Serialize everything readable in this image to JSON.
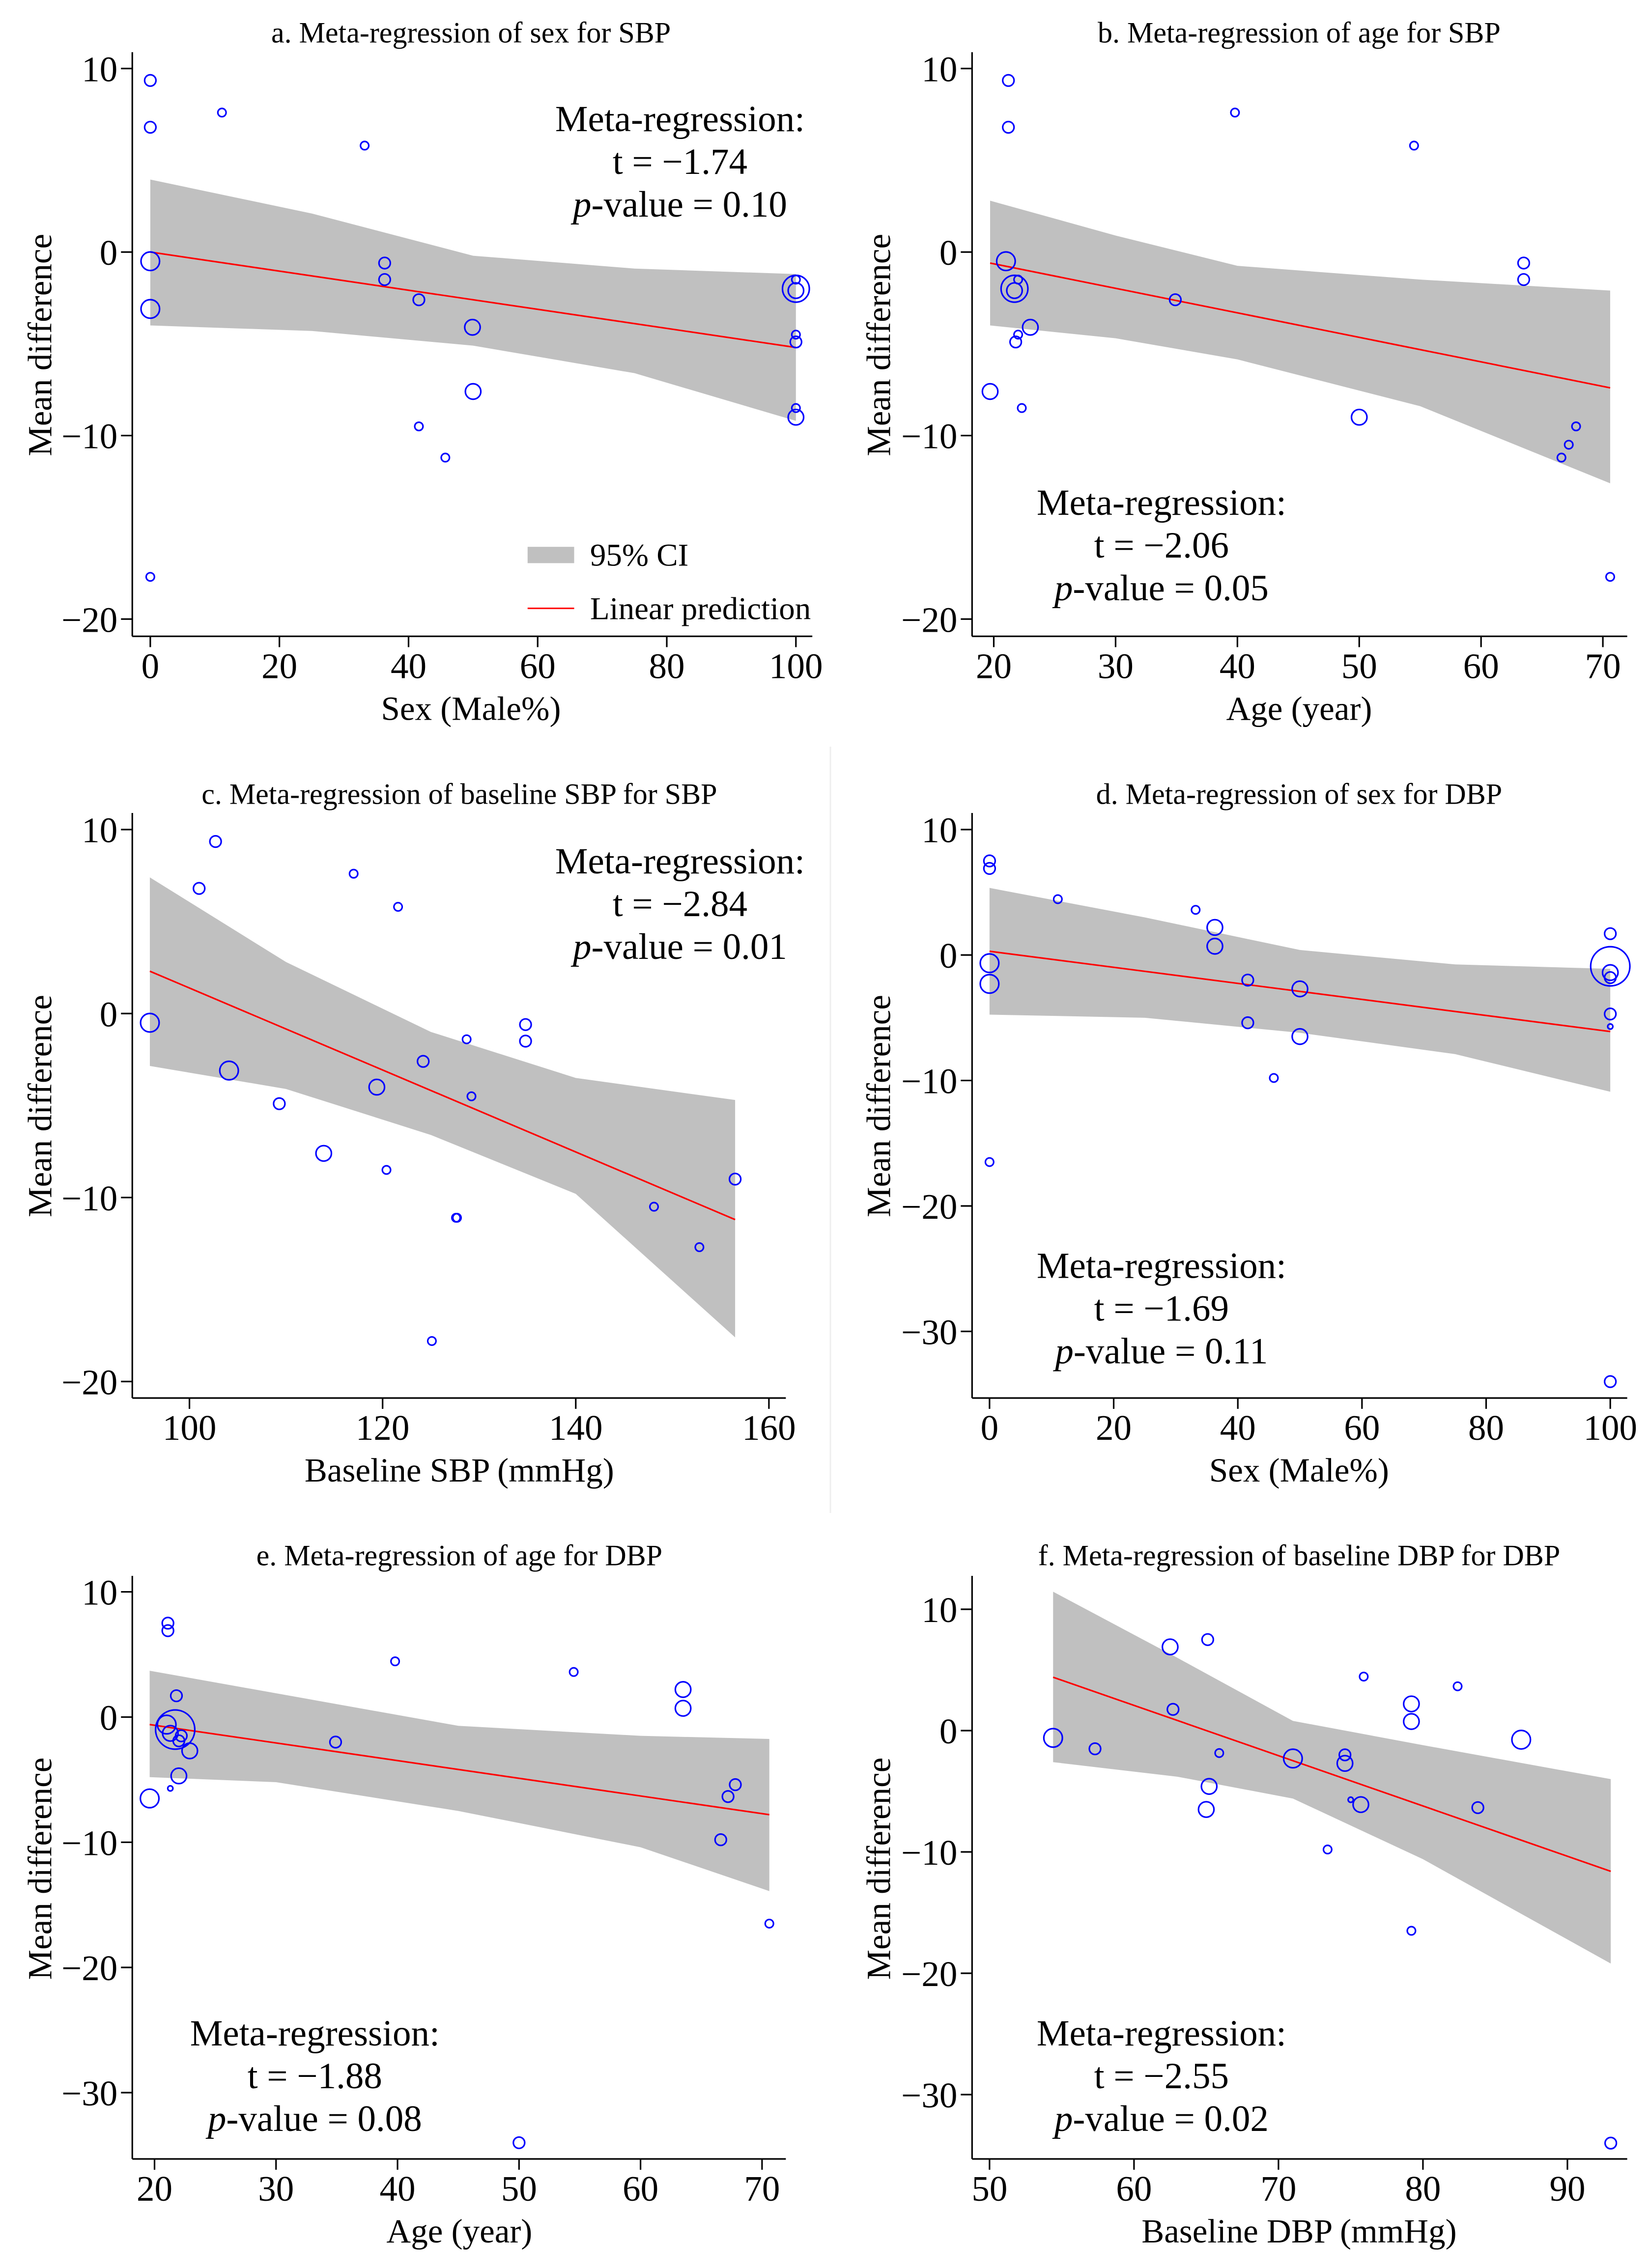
{
  "chart_data": [
    {
      "type": "scatter",
      "title": "a. Meta-regression of sex for SBP",
      "xlabel": "Sex (Male%)",
      "ylabel": "Mean difference",
      "xticks": [
        0,
        20,
        40,
        60,
        80,
        100
      ],
      "xtick_labels": [
        "0",
        "20",
        "40",
        "60",
        "80",
        "100"
      ],
      "yticks": [
        10,
        0,
        -10,
        -20
      ],
      "ytick_labels": [
        "10",
        "0",
        "−10",
        "−20"
      ],
      "fit_line": {
        "x": [
          0,
          100
        ],
        "y": [
          0.0,
          -5.2
        ]
      },
      "ci": {
        "x": [
          0,
          25,
          50,
          75,
          100
        ],
        "upper": [
          3.95,
          2.1,
          -0.2,
          -0.9,
          -1.2
        ],
        "lower": [
          -4.0,
          -4.3,
          -5.1,
          -6.6,
          -9.2
        ]
      },
      "points": [
        [
          0,
          9.35,
          3
        ],
        [
          0,
          6.8,
          3
        ],
        [
          11.1,
          7.6,
          2
        ],
        [
          33.2,
          5.8,
          2
        ],
        [
          0,
          -0.5,
          5
        ],
        [
          0,
          -3.1,
          5
        ],
        [
          36.3,
          -0.6,
          3
        ],
        [
          36.3,
          -1.5,
          3
        ],
        [
          41.6,
          -2.6,
          3
        ],
        [
          49.9,
          -4.1,
          4
        ],
        [
          50,
          -7.6,
          4
        ],
        [
          41.6,
          -9.5,
          2
        ],
        [
          45.7,
          -11.2,
          2
        ],
        [
          0,
          -17.7,
          2
        ],
        [
          100,
          -2.0,
          6
        ],
        [
          100,
          -2.1,
          4
        ],
        [
          100,
          -1.5,
          2
        ],
        [
          100,
          -4.5,
          2
        ],
        [
          100,
          -4.9,
          3
        ],
        [
          100,
          -8.5,
          2
        ],
        [
          100,
          -9.0,
          4
        ]
      ],
      "annotation": {
        "heading": "Meta-regression:",
        "t_line": "t = −1.74",
        "p_italic": "p",
        "p_rest": "-value = 0.10"
      },
      "legend": {
        "position": "bottom-right",
        "ci_label": "95% CI",
        "line_label": "Linear prediction"
      }
    },
    {
      "type": "scatter",
      "title": "b. Meta-regression of age for SBP",
      "xlabel": "Age (year)",
      "ylabel": "Mean difference",
      "xticks": [
        20,
        30,
        40,
        50,
        60,
        70
      ],
      "xtick_labels": [
        "20",
        "30",
        "40",
        "50",
        "60",
        "70"
      ],
      "yticks": [
        10,
        0,
        -10,
        -20
      ],
      "ytick_labels": [
        "10",
        "0",
        "−10",
        "−20"
      ],
      "fit_line": {
        "x": [
          19.7,
          70.6
        ],
        "y": [
          -0.6,
          -7.4
        ]
      },
      "ci": {
        "x": [
          19.7,
          30,
          40,
          55,
          70.6
        ],
        "upper": [
          2.8,
          0.9,
          -0.75,
          -1.5,
          -2.1
        ],
        "lower": [
          -4.0,
          -4.7,
          -5.85,
          -8.4,
          -12.6
        ]
      },
      "points": [
        [
          21.2,
          9.35,
          3
        ],
        [
          21.2,
          6.8,
          3
        ],
        [
          39.8,
          7.6,
          2
        ],
        [
          54.5,
          5.8,
          2
        ],
        [
          21.0,
          -0.5,
          5
        ],
        [
          21.7,
          -2.0,
          6
        ],
        [
          21.7,
          -2.1,
          4
        ],
        [
          22.0,
          -1.5,
          2
        ],
        [
          23.0,
          -4.1,
          4
        ],
        [
          22.0,
          -4.5,
          2
        ],
        [
          21.8,
          -4.9,
          3
        ],
        [
          19.7,
          -7.6,
          4
        ],
        [
          22.3,
          -8.5,
          2
        ],
        [
          34.9,
          -2.6,
          3
        ],
        [
          50.0,
          -9.0,
          4
        ],
        [
          63.5,
          -0.6,
          3
        ],
        [
          63.5,
          -1.5,
          3
        ],
        [
          67.8,
          -9.5,
          2
        ],
        [
          67.2,
          -10.5,
          2
        ],
        [
          66.6,
          -11.2,
          2
        ],
        [
          70.6,
          -17.7,
          2
        ]
      ],
      "annotation": {
        "heading": "Meta-regression:",
        "t_line": "t = −2.06",
        "p_italic": "p",
        "p_rest": "-value = 0.05"
      }
    },
    {
      "type": "scatter",
      "title": "c. Meta-regression of baseline SBP for SBP",
      "xlabel": "Baseline SBP (mmHg)",
      "ylabel": "Mean difference",
      "xticks": [
        100,
        120,
        140,
        160
      ],
      "xtick_labels": [
        "100",
        "120",
        "140",
        "160"
      ],
      "yticks": [
        10,
        0,
        -10,
        -20
      ],
      "ytick_labels": [
        "10",
        "0",
        "−10",
        "−20"
      ],
      "fit_line": {
        "x": [
          95.9,
          156.5
        ],
        "y": [
          2.3,
          -11.2
        ]
      },
      "ci": {
        "x": [
          95.9,
          110,
          125,
          140,
          156.5
        ],
        "upper": [
          7.4,
          2.8,
          -1.0,
          -3.5,
          -4.7
        ],
        "lower": [
          -2.85,
          -4.1,
          -6.6,
          -9.8,
          -17.6
        ]
      },
      "points": [
        [
          95.9,
          -0.5,
          5
        ],
        [
          102.7,
          9.35,
          3
        ],
        [
          101.0,
          6.8,
          3
        ],
        [
          117.0,
          7.6,
          2
        ],
        [
          121.6,
          5.8,
          2
        ],
        [
          104.1,
          -3.1,
          5
        ],
        [
          109.3,
          -4.9,
          3
        ],
        [
          113.9,
          -7.6,
          4
        ],
        [
          119.4,
          -4.0,
          4
        ],
        [
          120.4,
          -8.5,
          2
        ],
        [
          124.2,
          -2.6,
          3
        ],
        [
          128.7,
          -1.4,
          2
        ],
        [
          134.8,
          -0.6,
          3
        ],
        [
          134.8,
          -1.5,
          3
        ],
        [
          129.2,
          -4.5,
          2
        ],
        [
          127.6,
          -11.1,
          2
        ],
        [
          127.7,
          -11.1,
          2
        ],
        [
          125.1,
          -17.8,
          2
        ],
        [
          148.1,
          -10.5,
          2
        ],
        [
          152.8,
          -12.7,
          2
        ],
        [
          156.5,
          -9.0,
          3
        ]
      ],
      "annotation": {
        "heading": "Meta-regression:",
        "t_line": "t = −2.84",
        "p_italic": "p",
        "p_rest": "-value = 0.01"
      }
    },
    {
      "type": "scatter",
      "title": "d. Meta-regression of sex for DBP",
      "xlabel": "Sex (Male%)",
      "ylabel": "Mean difference",
      "xticks": [
        0,
        20,
        40,
        60,
        80,
        100
      ],
      "xtick_labels": [
        "0",
        "20",
        "40",
        "60",
        "80",
        "100"
      ],
      "yticks": [
        10,
        0,
        -10,
        -20,
        -30
      ],
      "ytick_labels": [
        "10",
        "0",
        "−10",
        "−20",
        "−30"
      ],
      "fit_line": {
        "x": [
          0,
          100
        ],
        "y": [
          0.3,
          -6.1
        ]
      },
      "ci": {
        "x": [
          0,
          25,
          50,
          75,
          100
        ],
        "upper": [
          5.35,
          3.0,
          0.4,
          -0.75,
          -1.1
        ],
        "lower": [
          -4.75,
          -5.0,
          -6.2,
          -7.9,
          -10.9
        ]
      },
      "points": [
        [
          0,
          7.5,
          3
        ],
        [
          0,
          6.9,
          3
        ],
        [
          0,
          -0.65,
          5
        ],
        [
          0,
          -2.3,
          5
        ],
        [
          0,
          -16.5,
          2
        ],
        [
          11,
          4.45,
          2
        ],
        [
          33.2,
          3.6,
          2
        ],
        [
          36.3,
          2.2,
          4
        ],
        [
          36.3,
          0.7,
          4
        ],
        [
          41.6,
          -2.0,
          3
        ],
        [
          41.6,
          -5.4,
          3
        ],
        [
          50,
          -2.7,
          4
        ],
        [
          50,
          -6.5,
          4
        ],
        [
          45.8,
          -9.8,
          2
        ],
        [
          100,
          1.7,
          3
        ],
        [
          100,
          -0.9,
          8
        ],
        [
          100,
          -1.4,
          4
        ],
        [
          100,
          -1.8,
          3
        ],
        [
          100,
          -4.7,
          3
        ],
        [
          100,
          -5.7,
          1
        ],
        [
          100,
          -34.0,
          3
        ]
      ],
      "annotation": {
        "heading": "Meta-regression:",
        "t_line": "t = −1.69",
        "p_italic": "p",
        "p_rest": "-value = 0.11"
      }
    },
    {
      "type": "scatter",
      "title": "e. Meta-regression of age for DBP",
      "xlabel": "Age (year)",
      "ylabel": "Mean difference",
      "xticks": [
        20,
        30,
        40,
        50,
        60,
        70
      ],
      "xtick_labels": [
        "20",
        "30",
        "40",
        "50",
        "60",
        "70"
      ],
      "yticks": [
        10,
        0,
        -10,
        -20,
        -30
      ],
      "ytick_labels": [
        "10",
        "0",
        "−10",
        "−20",
        "−30"
      ],
      "fit_line": {
        "x": [
          19.6,
          70.6
        ],
        "y": [
          -0.6,
          -7.8
        ]
      },
      "ci": {
        "x": [
          19.6,
          30,
          45,
          60,
          70.6
        ],
        "upper": [
          3.7,
          1.9,
          -0.7,
          -1.5,
          -1.75
        ],
        "lower": [
          -4.8,
          -5.2,
          -7.5,
          -10.4,
          -13.9
        ]
      },
      "points": [
        [
          21.1,
          7.5,
          3
        ],
        [
          21.1,
          6.9,
          3
        ],
        [
          21.8,
          1.7,
          3
        ],
        [
          21.0,
          -0.6,
          5
        ],
        [
          21.7,
          -1.0,
          8
        ],
        [
          21.3,
          -1.3,
          4
        ],
        [
          22.2,
          -1.5,
          3
        ],
        [
          22.0,
          -1.9,
          3
        ],
        [
          22.9,
          -2.7,
          4
        ],
        [
          22.0,
          -4.7,
          4
        ],
        [
          21.3,
          -5.7,
          1
        ],
        [
          19.6,
          -6.5,
          5
        ],
        [
          34.9,
          -2.0,
          3
        ],
        [
          39.8,
          4.45,
          2
        ],
        [
          54.5,
          3.6,
          2
        ],
        [
          63.5,
          2.2,
          4
        ],
        [
          63.5,
          0.7,
          4
        ],
        [
          67.8,
          -5.4,
          3
        ],
        [
          67.2,
          -6.35,
          3
        ],
        [
          66.6,
          -9.8,
          3
        ],
        [
          70.6,
          -16.5,
          2
        ],
        [
          50.0,
          -34.0,
          3
        ]
      ],
      "annotation": {
        "heading": "Meta-regression:",
        "t_line": "t = −1.88",
        "p_italic": "p",
        "p_rest": "-value = 0.08"
      }
    },
    {
      "type": "scatter",
      "title": "f. Meta-regression of baseline DBP for DBP",
      "xlabel": "Baseline DBP (mmHg)",
      "ylabel": "Mean difference",
      "xticks": [
        50,
        60,
        70,
        80,
        90
      ],
      "xtick_labels": [
        "50",
        "60",
        "70",
        "80",
        "90"
      ],
      "yticks": [
        10,
        0,
        -10,
        -20,
        -30
      ],
      "ytick_labels": [
        "10",
        "0",
        "−10",
        "−20",
        "−30"
      ],
      "fit_line": {
        "x": [
          54.4,
          93.0
        ],
        "y": [
          4.4,
          -11.6
        ]
      },
      "ci": {
        "x": [
          54.4,
          63,
          71,
          80,
          93
        ],
        "upper": [
          11.45,
          6.0,
          0.8,
          -1.2,
          -4.0
        ],
        "lower": [
          -2.6,
          -3.8,
          -5.6,
          -10.6,
          -19.2
        ]
      },
      "points": [
        [
          54.4,
          -0.6,
          5
        ],
        [
          57.3,
          -1.5,
          3
        ],
        [
          62.5,
          6.9,
          4
        ],
        [
          65.1,
          7.5,
          3
        ],
        [
          62.7,
          1.75,
          3
        ],
        [
          65.9,
          -1.85,
          2
        ],
        [
          65.2,
          -4.6,
          4
        ],
        [
          65.0,
          -6.5,
          4
        ],
        [
          71.0,
          -2.3,
          5
        ],
        [
          74.6,
          -2.0,
          3
        ],
        [
          74.6,
          -2.7,
          4
        ],
        [
          75.0,
          -5.7,
          1
        ],
        [
          75.7,
          -6.1,
          4
        ],
        [
          73.4,
          -9.8,
          2
        ],
        [
          75.9,
          4.45,
          2
        ],
        [
          79.2,
          2.2,
          4
        ],
        [
          79.2,
          0.75,
          4
        ],
        [
          79.2,
          -16.5,
          2
        ],
        [
          82.4,
          3.65,
          2
        ],
        [
          83.8,
          -6.35,
          3
        ],
        [
          86.8,
          -0.75,
          5
        ],
        [
          93.0,
          -34.0,
          3
        ]
      ],
      "annotation": {
        "heading": "Meta-regression:",
        "t_line": "t = −2.55",
        "p_italic": "p",
        "p_rest": "-value = 0.02"
      }
    }
  ],
  "colors": {
    "ci_fill": "#c0c0c0",
    "fit_line": "#ff0000",
    "points": "#0000ff",
    "axis": "#000000"
  }
}
